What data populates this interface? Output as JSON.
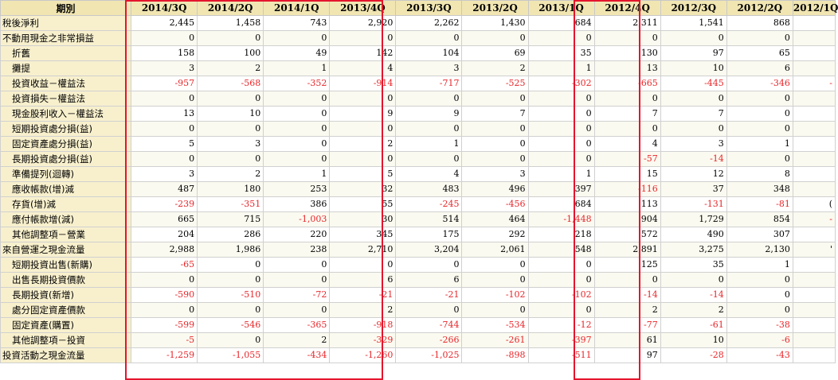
{
  "header": {
    "label": "期別",
    "periods": [
      "2014/3Q",
      "2014/2Q",
      "2014/1Q",
      "2013/4Q",
      "2013/3Q",
      "2013/2Q",
      "2013/1Q",
      "2012/4Q",
      "2012/3Q",
      "2012/2Q",
      "2012/1Q"
    ]
  },
  "rows": [
    {
      "label": "稅後淨利",
      "indent": false,
      "values": [
        "2,445",
        "1,458",
        "743",
        "2,920",
        "2,262",
        "1,430",
        "684",
        "2,311",
        "1,541",
        "868",
        ""
      ]
    },
    {
      "label": "不動用現金之非常損益",
      "indent": false,
      "values": [
        "0",
        "0",
        "0",
        "0",
        "0",
        "0",
        "0",
        "0",
        "0",
        "0",
        ""
      ]
    },
    {
      "label": "折舊",
      "indent": true,
      "values": [
        "158",
        "100",
        "49",
        "142",
        "104",
        "69",
        "35",
        "130",
        "97",
        "65",
        ""
      ]
    },
    {
      "label": "攤提",
      "indent": true,
      "values": [
        "3",
        "2",
        "1",
        "4",
        "3",
        "2",
        "1",
        "13",
        "10",
        "6",
        ""
      ]
    },
    {
      "label": "投資收益－權益法",
      "indent": true,
      "values": [
        "-957",
        "-568",
        "-352",
        "-914",
        "-717",
        "-525",
        "-302",
        "-665",
        "-445",
        "-346",
        "-"
      ]
    },
    {
      "label": "投資損失－權益法",
      "indent": true,
      "values": [
        "0",
        "0",
        "0",
        "0",
        "0",
        "0",
        "0",
        "0",
        "0",
        "0",
        ""
      ]
    },
    {
      "label": "現金股利收入－權益法",
      "indent": true,
      "values": [
        "13",
        "10",
        "0",
        "9",
        "9",
        "7",
        "0",
        "7",
        "7",
        "0",
        ""
      ]
    },
    {
      "label": "短期投資處分損(益)",
      "indent": true,
      "values": [
        "0",
        "0",
        "0",
        "0",
        "0",
        "0",
        "0",
        "0",
        "0",
        "0",
        ""
      ]
    },
    {
      "label": "固定資產處分損(益)",
      "indent": true,
      "values": [
        "5",
        "3",
        "0",
        "2",
        "1",
        "0",
        "0",
        "4",
        "3",
        "1",
        ""
      ]
    },
    {
      "label": "長期投資處分損(益)",
      "indent": true,
      "values": [
        "0",
        "0",
        "0",
        "0",
        "0",
        "0",
        "0",
        "-57",
        "-14",
        "0",
        ""
      ]
    },
    {
      "label": "準備提列(迴轉)",
      "indent": true,
      "values": [
        "3",
        "2",
        "1",
        "5",
        "4",
        "3",
        "1",
        "15",
        "12",
        "8",
        ""
      ]
    },
    {
      "label": "應收帳款(增)減",
      "indent": true,
      "values": [
        "487",
        "180",
        "253",
        "32",
        "483",
        "496",
        "397",
        "-116",
        "37",
        "348",
        ""
      ]
    },
    {
      "label": "存貨(增)減",
      "indent": true,
      "values": [
        "-239",
        "-351",
        "386",
        "55",
        "-245",
        "-456",
        "684",
        "113",
        "-131",
        "-81",
        "("
      ]
    },
    {
      "label": "應付帳款增(減)",
      "indent": true,
      "values": [
        "665",
        "715",
        "-1,003",
        "30",
        "514",
        "464",
        "-1,448",
        "904",
        "1,729",
        "854",
        "-"
      ]
    },
    {
      "label": "其他調整項－營業",
      "indent": true,
      "values": [
        "204",
        "286",
        "220",
        "345",
        "175",
        "292",
        "218",
        "572",
        "490",
        "307",
        ""
      ]
    },
    {
      "label": "來自營運之現金流量",
      "indent": false,
      "values": [
        "2,988",
        "1,986",
        "238",
        "2,710",
        "3,204",
        "2,061",
        "548",
        "2,891",
        "3,275",
        "2,130",
        "'"
      ]
    },
    {
      "label": "短期投資出售(新購)",
      "indent": true,
      "values": [
        "-65",
        "0",
        "0",
        "0",
        "0",
        "0",
        "0",
        "125",
        "35",
        "1",
        ""
      ]
    },
    {
      "label": "出售長期投資價款",
      "indent": true,
      "values": [
        "0",
        "0",
        "0",
        "6",
        "6",
        "0",
        "0",
        "0",
        "0",
        "0",
        ""
      ]
    },
    {
      "label": "長期投資(新增)",
      "indent": true,
      "values": [
        "-590",
        "-510",
        "-72",
        "-21",
        "-21",
        "-102",
        "-102",
        "-14",
        "-14",
        "0",
        ""
      ]
    },
    {
      "label": "處分固定資產價款",
      "indent": true,
      "values": [
        "0",
        "0",
        "0",
        "2",
        "0",
        "0",
        "0",
        "2",
        "2",
        "0",
        ""
      ]
    },
    {
      "label": "固定資產(購置)",
      "indent": true,
      "values": [
        "-599",
        "-546",
        "-365",
        "-918",
        "-744",
        "-534",
        "-12",
        "-77",
        "-61",
        "-38",
        ""
      ]
    },
    {
      "label": "其他調整項－投資",
      "indent": true,
      "values": [
        "-5",
        "0",
        "2",
        "-329",
        "-266",
        "-261",
        "-397",
        "61",
        "10",
        "-6",
        ""
      ]
    },
    {
      "label": "投資活動之現金流量",
      "indent": false,
      "values": [
        "-1,259",
        "-1,055",
        "-434",
        "-1,260",
        "-1,025",
        "-898",
        "-511",
        "97",
        "-28",
        "-43",
        ""
      ]
    }
  ],
  "highlight_color": "#e5142d",
  "negative_color": "#e8262a"
}
